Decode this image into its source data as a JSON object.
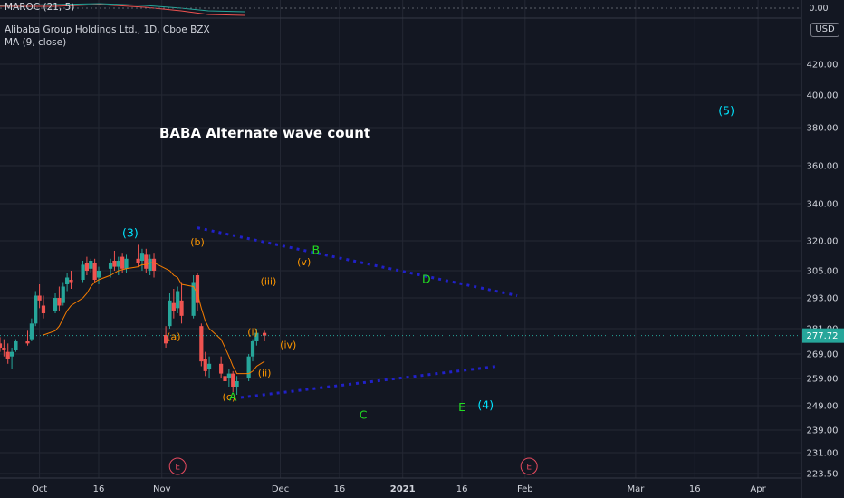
{
  "indicator_pane": {
    "label": "MAROC (21, 5)",
    "value_label": "0.00"
  },
  "legend": {
    "symbol": "Alibaba Group Holdings Ltd., 1D, Cboe BZX",
    "moving_average": "MA (9, close)",
    "currency": "USD"
  },
  "colors": {
    "background": "#131722",
    "grid": "#242834",
    "up_candle": "#26a69a",
    "down_candle": "#ef5350",
    "ma_line": "#f57c00",
    "trend_lines": "#2121c9",
    "wave_cyan": "#00e5ff",
    "wave_green": "#22dd22",
    "wave_orange": "#ff9800",
    "earnings_marker": "#e84a5f",
    "last_price_bg": "#26a69a"
  },
  "chart_data": {
    "type": "candlestick",
    "title": "BABA Alternate wave count",
    "y_axis": {
      "ticks": [
        223.5,
        231.0,
        239.0,
        249.0,
        259.0,
        269.0,
        281.0,
        293.0,
        305.0,
        320.0,
        340.0,
        360.0,
        380.0,
        400.0,
        420.0
      ],
      "tick_labels": [
        "223.50",
        "231.00",
        "239.00",
        "249.00",
        "259.00",
        "269.00",
        "281.00",
        "293.00",
        "305.00",
        "320.00",
        "340.00",
        "360.00",
        "380.00",
        "400.00",
        "420.00"
      ],
      "last_price": 277.72,
      "last_price_label": "277.72"
    },
    "x_axis": {
      "range": [
        "2020-09-21",
        "2021-04-12"
      ],
      "ticks": [
        {
          "date": "2020-10-01",
          "label": "Oct"
        },
        {
          "date": "2020-10-16",
          "label": "16"
        },
        {
          "date": "2020-11-01",
          "label": "Nov"
        },
        {
          "date": "2020-12-01",
          "label": "Dec"
        },
        {
          "date": "2020-12-16",
          "label": "16"
        },
        {
          "date": "2021-01-01",
          "label": "2021"
        },
        {
          "date": "2021-01-16",
          "label": "16"
        },
        {
          "date": "2021-02-01",
          "label": "Feb"
        },
        {
          "date": "2021-03-01",
          "label": "Mar"
        },
        {
          "date": "2021-03-16",
          "label": "16"
        },
        {
          "date": "2021-04-01",
          "label": "Apr"
        }
      ]
    },
    "candles": [
      {
        "date": "2020-09-21",
        "o": 274,
        "h": 277,
        "l": 270,
        "c": 272
      },
      {
        "date": "2020-09-22",
        "o": 272,
        "h": 276,
        "l": 268,
        "c": 271
      },
      {
        "date": "2020-09-23",
        "o": 270,
        "h": 274,
        "l": 265,
        "c": 267
      },
      {
        "date": "2020-09-24",
        "o": 268,
        "h": 272,
        "l": 263,
        "c": 270
      },
      {
        "date": "2020-09-25",
        "o": 271,
        "h": 276,
        "l": 270,
        "c": 275
      },
      {
        "date": "2020-09-28",
        "o": 275,
        "h": 280,
        "l": 273,
        "c": 274
      },
      {
        "date": "2020-09-29",
        "o": 276,
        "h": 285,
        "l": 275,
        "c": 283
      },
      {
        "date": "2020-09-30",
        "o": 283,
        "h": 296,
        "l": 282,
        "c": 294
      },
      {
        "date": "2020-10-01",
        "o": 294,
        "h": 299,
        "l": 289,
        "c": 292
      },
      {
        "date": "2020-10-02",
        "o": 290,
        "h": 294,
        "l": 285,
        "c": 287
      },
      {
        "date": "2020-10-05",
        "o": 288,
        "h": 295,
        "l": 287,
        "c": 293
      },
      {
        "date": "2020-10-06",
        "o": 293,
        "h": 298,
        "l": 288,
        "c": 290
      },
      {
        "date": "2020-10-07",
        "o": 291,
        "h": 300,
        "l": 290,
        "c": 298
      },
      {
        "date": "2020-10-08",
        "o": 299,
        "h": 304,
        "l": 296,
        "c": 302
      },
      {
        "date": "2020-10-09",
        "o": 301,
        "h": 305,
        "l": 297,
        "c": 300
      },
      {
        "date": "2020-10-12",
        "o": 301,
        "h": 310,
        "l": 300,
        "c": 308
      },
      {
        "date": "2020-10-13",
        "o": 309,
        "h": 312,
        "l": 303,
        "c": 305
      },
      {
        "date": "2020-10-14",
        "o": 306,
        "h": 311,
        "l": 304,
        "c": 310
      },
      {
        "date": "2020-10-15",
        "o": 309,
        "h": 311,
        "l": 300,
        "c": 301
      },
      {
        "date": "2020-10-16",
        "o": 302,
        "h": 307,
        "l": 299,
        "c": 305
      },
      {
        "date": "2020-10-19",
        "o": 306,
        "h": 311,
        "l": 302,
        "c": 309
      },
      {
        "date": "2020-10-20",
        "o": 310,
        "h": 315,
        "l": 305,
        "c": 307
      },
      {
        "date": "2020-10-21",
        "o": 307,
        "h": 312,
        "l": 303,
        "c": 310
      },
      {
        "date": "2020-10-22",
        "o": 312,
        "h": 314,
        "l": 304,
        "c": 306
      },
      {
        "date": "2020-10-23",
        "o": 306,
        "h": 313,
        "l": 304,
        "c": 311
      },
      {
        "date": "2020-10-26",
        "o": 311,
        "h": 318,
        "l": 307,
        "c": 309
      },
      {
        "date": "2020-10-27",
        "o": 310,
        "h": 316,
        "l": 305,
        "c": 314
      },
      {
        "date": "2020-10-28",
        "o": 313,
        "h": 316,
        "l": 304,
        "c": 306
      },
      {
        "date": "2020-10-29",
        "o": 305,
        "h": 313,
        "l": 303,
        "c": 311
      },
      {
        "date": "2020-10-30",
        "o": 311,
        "h": 314,
        "l": 302,
        "c": 305
      },
      {
        "date": "2020-11-02",
        "o": 278,
        "h": 282,
        "l": 272,
        "c": 274
      },
      {
        "date": "2020-11-03",
        "o": 282,
        "h": 295,
        "l": 281,
        "c": 292
      },
      {
        "date": "2020-11-04",
        "o": 291,
        "h": 297,
        "l": 285,
        "c": 288
      },
      {
        "date": "2020-11-05",
        "o": 289,
        "h": 298,
        "l": 287,
        "c": 296
      },
      {
        "date": "2020-11-06",
        "o": 292,
        "h": 300,
        "l": 283,
        "c": 286
      },
      {
        "date": "2020-11-09",
        "o": 286,
        "h": 303,
        "l": 285,
        "c": 300
      },
      {
        "date": "2020-11-10",
        "o": 303,
        "h": 304,
        "l": 288,
        "c": 291
      },
      {
        "date": "2020-11-11",
        "o": 282,
        "h": 283,
        "l": 264,
        "c": 266
      },
      {
        "date": "2020-11-12",
        "o": 267,
        "h": 270,
        "l": 260,
        "c": 262
      },
      {
        "date": "2020-11-13",
        "o": 263,
        "h": 268,
        "l": 259,
        "c": 265
      },
      {
        "date": "2020-11-16",
        "o": 265,
        "h": 268,
        "l": 259,
        "c": 261
      },
      {
        "date": "2020-11-17",
        "o": 260,
        "h": 263,
        "l": 256,
        "c": 258
      },
      {
        "date": "2020-11-18",
        "o": 259,
        "h": 263,
        "l": 256,
        "c": 261
      },
      {
        "date": "2020-11-19",
        "o": 261,
        "h": 262,
        "l": 254,
        "c": 256
      },
      {
        "date": "2020-11-20",
        "o": 256,
        "h": 260,
        "l": 253,
        "c": 258
      },
      {
        "date": "2020-11-23",
        "o": 259,
        "h": 269,
        "l": 258,
        "c": 268
      },
      {
        "date": "2020-11-24",
        "o": 268,
        "h": 276,
        "l": 266,
        "c": 275
      },
      {
        "date": "2020-11-25",
        "o": 275,
        "h": 281,
        "l": 273,
        "c": 279
      },
      {
        "date": "2020-11-27",
        "o": 279,
        "h": 280,
        "l": 275,
        "c": 277.72
      }
    ],
    "moving_average": {
      "name": "MA (9, close)",
      "points": [
        {
          "date": "2020-10-02",
          "v": 278
        },
        {
          "date": "2020-10-05",
          "v": 280
        },
        {
          "date": "2020-10-06",
          "v": 282
        },
        {
          "date": "2020-10-07",
          "v": 285
        },
        {
          "date": "2020-10-08",
          "v": 288
        },
        {
          "date": "2020-10-09",
          "v": 290
        },
        {
          "date": "2020-10-12",
          "v": 293
        },
        {
          "date": "2020-10-13",
          "v": 295
        },
        {
          "date": "2020-10-14",
          "v": 298
        },
        {
          "date": "2020-10-15",
          "v": 300
        },
        {
          "date": "2020-10-16",
          "v": 301
        },
        {
          "date": "2020-10-19",
          "v": 303
        },
        {
          "date": "2020-10-20",
          "v": 304
        },
        {
          "date": "2020-10-21",
          "v": 305
        },
        {
          "date": "2020-10-22",
          "v": 305.5
        },
        {
          "date": "2020-10-23",
          "v": 306
        },
        {
          "date": "2020-10-26",
          "v": 307
        },
        {
          "date": "2020-10-27",
          "v": 308
        },
        {
          "date": "2020-10-28",
          "v": 308
        },
        {
          "date": "2020-10-29",
          "v": 309
        },
        {
          "date": "2020-10-30",
          "v": 309
        },
        {
          "date": "2020-11-02",
          "v": 306
        },
        {
          "date": "2020-11-03",
          "v": 305
        },
        {
          "date": "2020-11-04",
          "v": 303
        },
        {
          "date": "2020-11-05",
          "v": 302
        },
        {
          "date": "2020-11-06",
          "v": 299
        },
        {
          "date": "2020-11-09",
          "v": 298
        },
        {
          "date": "2020-11-10",
          "v": 295
        },
        {
          "date": "2020-11-11",
          "v": 289
        },
        {
          "date": "2020-11-12",
          "v": 284
        },
        {
          "date": "2020-11-13",
          "v": 281
        },
        {
          "date": "2020-11-16",
          "v": 276
        },
        {
          "date": "2020-11-17",
          "v": 272
        },
        {
          "date": "2020-11-18",
          "v": 268
        },
        {
          "date": "2020-11-19",
          "v": 264
        },
        {
          "date": "2020-11-20",
          "v": 261
        },
        {
          "date": "2020-11-23",
          "v": 261
        },
        {
          "date": "2020-11-24",
          "v": 262
        },
        {
          "date": "2020-11-25",
          "v": 264
        },
        {
          "date": "2020-11-27",
          "v": 266
        }
      ]
    },
    "trend_lines": [
      {
        "from": {
          "date": "2020-11-10",
          "v": 327
        },
        "to": {
          "date": "2021-01-30",
          "v": 294
        }
      },
      {
        "from": {
          "date": "2020-11-21",
          "v": 252
        },
        "to": {
          "date": "2021-01-25",
          "v": 264
        }
      }
    ],
    "wave_labels": [
      {
        "text": "(3)",
        "date": "2020-10-24",
        "v": 324,
        "color": "cyan"
      },
      {
        "text": "(b)",
        "date": "2020-11-10",
        "v": 319,
        "color": "orange"
      },
      {
        "text": "(a)",
        "date": "2020-11-04",
        "v": 277,
        "color": "orange"
      },
      {
        "text": "(c)",
        "date": "2020-11-18",
        "v": 252,
        "color": "orange"
      },
      {
        "text": "A",
        "date": "2020-11-19",
        "v": 252,
        "color": "green"
      },
      {
        "text": "(i)",
        "date": "2020-11-24",
        "v": 279,
        "color": "orange"
      },
      {
        "text": "(ii)",
        "date": "2020-11-27",
        "v": 261,
        "color": "orange"
      },
      {
        "text": "(iii)",
        "date": "2020-11-28",
        "v": 300,
        "color": "orange"
      },
      {
        "text": "(iv)",
        "date": "2020-12-03",
        "v": 273,
        "color": "orange"
      },
      {
        "text": "(v)",
        "date": "2020-12-07",
        "v": 309,
        "color": "orange"
      },
      {
        "text": "B",
        "date": "2020-12-10",
        "v": 315,
        "color": "green"
      },
      {
        "text": "C",
        "date": "2020-12-22",
        "v": 245,
        "color": "green"
      },
      {
        "text": "D",
        "date": "2021-01-07",
        "v": 301,
        "color": "green"
      },
      {
        "text": "E",
        "date": "2021-01-16",
        "v": 248,
        "color": "green"
      },
      {
        "text": "(4)",
        "date": "2021-01-22",
        "v": 249,
        "color": "cyan"
      },
      {
        "text": "(5)",
        "date": "2021-03-24",
        "v": 390,
        "color": "cyan"
      }
    ],
    "earnings_markers": [
      {
        "date": "2020-11-05",
        "label": "E"
      },
      {
        "date": "2021-02-02",
        "label": "E"
      }
    ]
  }
}
